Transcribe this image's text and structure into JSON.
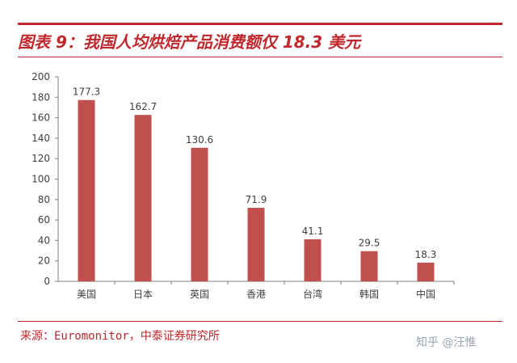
{
  "header": {
    "title": "图表 9：我国人均烘焙产品消费额仅 18.3 美元"
  },
  "footer": {
    "source": "来源：Euromonitor，中泰证券研究所",
    "watermark": "知乎 @汪惟"
  },
  "colors": {
    "bar": "#c0504d",
    "accent": "#c0282d",
    "axis": "#808080",
    "text": "#404040"
  },
  "chart_data": {
    "type": "bar",
    "title": "",
    "categories": [
      "美国",
      "日本",
      "英国",
      "香港",
      "台湾",
      "韩国",
      "中国"
    ],
    "values": [
      177.3,
      162.7,
      130.6,
      71.9,
      41.1,
      29.5,
      18.3
    ],
    "data_labels": [
      "177.3",
      "162.7",
      "130.6",
      "71.9",
      "41.1",
      "29.5",
      "18.3"
    ],
    "ylim": [
      0,
      200
    ],
    "yticks": [
      0,
      20,
      40,
      60,
      80,
      100,
      120,
      140,
      160,
      180,
      200
    ],
    "xlabel": "",
    "ylabel": "",
    "grid": false,
    "legend": "none"
  }
}
